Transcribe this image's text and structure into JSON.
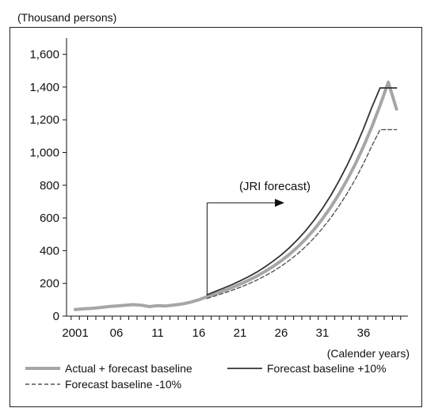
{
  "chart_data": {
    "type": "line",
    "ylabel": "(Thousand persons)",
    "xlabel": "(Calender years)",
    "ylim": [
      0,
      1700
    ],
    "xlim": [
      2001,
      2041
    ],
    "y_ticks": [
      0,
      200,
      400,
      600,
      800,
      1000,
      1200,
      1400,
      1600
    ],
    "y_tick_labels": [
      "0",
      "200",
      "400",
      "600",
      "800",
      "1,000",
      "1,200",
      "1,400",
      "1,600"
    ],
    "x_ticks": [
      2001,
      2006,
      2011,
      2016,
      2021,
      2026,
      2031,
      2036
    ],
    "x_tick_labels": [
      "2001",
      "06",
      "11",
      "16",
      "21",
      "26",
      "31",
      "36"
    ],
    "grid": false,
    "legend_position": "bottom",
    "annotation": {
      "text": "(JRI forecast)",
      "x": 2017
    },
    "colors": {
      "baseline": "#a6a6a6",
      "plus10": "#333333",
      "minus10": "#555555"
    },
    "series": [
      {
        "name": "Actual + forecast baseline",
        "style": "thick-gray",
        "x": [
          2001,
          2002,
          2003,
          2004,
          2005,
          2006,
          2007,
          2008,
          2009,
          2010,
          2011,
          2012,
          2013,
          2014,
          2015,
          2016,
          2017,
          2018,
          2019,
          2020,
          2021,
          2022,
          2023,
          2024,
          2025,
          2026,
          2027,
          2028,
          2029,
          2030,
          2031,
          2032,
          2033,
          2034,
          2035,
          2036,
          2037,
          2038,
          2039,
          2040
        ],
        "values": [
          40,
          45,
          47,
          52,
          58,
          62,
          66,
          70,
          67,
          58,
          64,
          62,
          68,
          74,
          85,
          100,
          118,
          137,
          155,
          174,
          195,
          218,
          243,
          272,
          303,
          338,
          378,
          423,
          473,
          530,
          594,
          665,
          745,
          833,
          930,
          1038,
          1157,
          1288,
          1430,
          1265
        ]
      },
      {
        "name": "Forecast baseline +10%",
        "style": "solid-dark",
        "x": [
          2017,
          2018,
          2019,
          2020,
          2021,
          2022,
          2023,
          2024,
          2025,
          2026,
          2027,
          2028,
          2029,
          2030,
          2031,
          2032,
          2033,
          2034,
          2035,
          2036,
          2037,
          2038,
          2039,
          2040
        ],
        "values": [
          130,
          151,
          171,
          192,
          215,
          240,
          268,
          300,
          335,
          374,
          418,
          468,
          524,
          587,
          657,
          736,
          825,
          922,
          1029,
          1147,
          1276,
          1395,
          1395,
          1395
        ]
      },
      {
        "name": "Forecast baseline -10%",
        "style": "dashed-dark",
        "x": [
          2017,
          2018,
          2019,
          2020,
          2021,
          2022,
          2023,
          2024,
          2025,
          2026,
          2027,
          2028,
          2029,
          2030,
          2031,
          2032,
          2033,
          2034,
          2035,
          2036,
          2037,
          2038,
          2039,
          2040
        ],
        "values": [
          108,
          124,
          140,
          157,
          176,
          196,
          219,
          245,
          273,
          305,
          341,
          381,
          426,
          478,
          536,
          600,
          672,
          750,
          837,
          934,
          1040,
          1140,
          1140,
          1140
        ]
      }
    ]
  }
}
